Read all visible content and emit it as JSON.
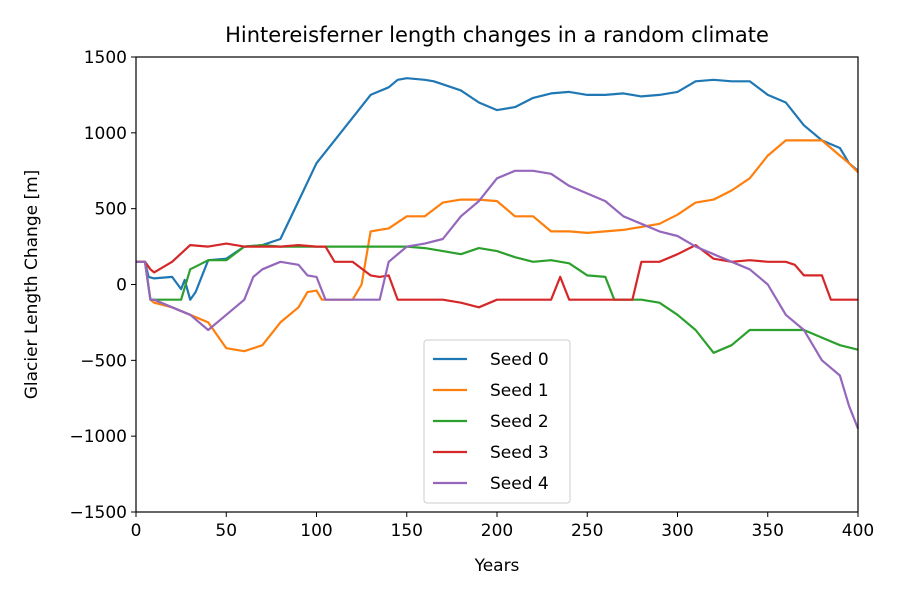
{
  "chart_data": {
    "type": "line",
    "title": "Hintereisferner length changes in a random climate",
    "xlabel": "Years",
    "ylabel": "Glacier Length Change [m]",
    "xlim": [
      0,
      400
    ],
    "ylim": [
      -1500,
      1500
    ],
    "xticks": [
      "0",
      "50",
      "100",
      "150",
      "200",
      "250",
      "300",
      "350",
      "400"
    ],
    "yticks": [
      "1500",
      "1000",
      "500",
      "0",
      "−500",
      "−1000",
      "−1500"
    ],
    "grid": false,
    "legend_position": "lower-center",
    "series": [
      {
        "name": "Seed 0",
        "color": "#1f77b4",
        "x": [
          0,
          5,
          7,
          10,
          20,
          25,
          27,
          30,
          33,
          40,
          50,
          60,
          70,
          80,
          90,
          100,
          110,
          120,
          130,
          140,
          145,
          150,
          160,
          165,
          170,
          180,
          190,
          200,
          210,
          220,
          230,
          240,
          250,
          260,
          270,
          280,
          290,
          300,
          310,
          320,
          330,
          340,
          350,
          360,
          370,
          375,
          380,
          390,
          395,
          400
        ],
        "y": [
          150,
          150,
          50,
          40,
          50,
          -30,
          30,
          -100,
          -50,
          160,
          170,
          250,
          260,
          300,
          550,
          800,
          950,
          1100,
          1250,
          1300,
          1350,
          1360,
          1350,
          1340,
          1320,
          1280,
          1200,
          1150,
          1170,
          1230,
          1260,
          1270,
          1250,
          1250,
          1260,
          1240,
          1250,
          1270,
          1340,
          1350,
          1340,
          1340,
          1250,
          1200,
          1050,
          1000,
          950,
          900,
          800,
          750
        ]
      },
      {
        "name": "Seed 1",
        "color": "#ff7f0e",
        "x": [
          0,
          5,
          8,
          10,
          20,
          30,
          40,
          50,
          60,
          70,
          80,
          90,
          95,
          100,
          103,
          110,
          120,
          125,
          130,
          140,
          150,
          160,
          170,
          180,
          190,
          200,
          210,
          220,
          230,
          240,
          250,
          260,
          270,
          280,
          290,
          300,
          310,
          320,
          330,
          340,
          350,
          360,
          370,
          380,
          390,
          395,
          400
        ],
        "y": [
          150,
          150,
          -100,
          -120,
          -150,
          -200,
          -250,
          -420,
          -440,
          -400,
          -250,
          -150,
          -50,
          -40,
          -100,
          -100,
          -100,
          0,
          350,
          370,
          450,
          450,
          540,
          560,
          560,
          550,
          450,
          450,
          350,
          350,
          340,
          350,
          360,
          380,
          400,
          460,
          540,
          560,
          620,
          700,
          850,
          950,
          950,
          950,
          850,
          800,
          740
        ]
      },
      {
        "name": "Seed 2",
        "color": "#2ca02c",
        "x": [
          0,
          5,
          8,
          10,
          20,
          25,
          30,
          35,
          40,
          50,
          60,
          70,
          80,
          90,
          100,
          110,
          120,
          130,
          140,
          150,
          160,
          170,
          180,
          190,
          200,
          210,
          220,
          230,
          240,
          250,
          260,
          265,
          270,
          280,
          290,
          300,
          310,
          320,
          330,
          340,
          350,
          360,
          370,
          380,
          390,
          400
        ],
        "y": [
          150,
          150,
          -100,
          -100,
          -100,
          -100,
          100,
          130,
          160,
          160,
          250,
          260,
          250,
          250,
          250,
          250,
          250,
          250,
          250,
          250,
          240,
          220,
          200,
          240,
          220,
          180,
          150,
          160,
          140,
          60,
          50,
          -100,
          -100,
          -100,
          -120,
          -200,
          -300,
          -450,
          -400,
          -300,
          -300,
          -300,
          -300,
          -350,
          -400,
          -430
        ]
      },
      {
        "name": "Seed 3",
        "color": "#d62728",
        "x": [
          0,
          5,
          8,
          10,
          20,
          30,
          40,
          50,
          60,
          70,
          80,
          90,
          100,
          105,
          110,
          120,
          130,
          135,
          140,
          145,
          150,
          160,
          170,
          180,
          190,
          200,
          210,
          220,
          230,
          235,
          240,
          245,
          250,
          260,
          270,
          275,
          280,
          290,
          300,
          310,
          320,
          330,
          340,
          350,
          360,
          365,
          370,
          380,
          385,
          390,
          400
        ],
        "y": [
          150,
          150,
          100,
          80,
          150,
          260,
          250,
          270,
          250,
          250,
          250,
          260,
          250,
          250,
          150,
          150,
          60,
          50,
          60,
          -100,
          -100,
          -100,
          -100,
          -120,
          -150,
          -100,
          -100,
          -100,
          -100,
          50,
          -100,
          -100,
          -100,
          -100,
          -100,
          -100,
          150,
          150,
          200,
          260,
          170,
          150,
          160,
          150,
          150,
          130,
          60,
          60,
          -100,
          -100,
          -100
        ]
      },
      {
        "name": "Seed 4",
        "color": "#9467bd",
        "x": [
          0,
          5,
          8,
          10,
          20,
          30,
          40,
          50,
          60,
          65,
          70,
          80,
          90,
          95,
          100,
          105,
          110,
          120,
          130,
          135,
          140,
          150,
          160,
          170,
          180,
          190,
          200,
          210,
          220,
          230,
          240,
          250,
          260,
          270,
          280,
          290,
          300,
          310,
          320,
          330,
          340,
          350,
          360,
          370,
          380,
          390,
          395,
          400
        ],
        "y": [
          150,
          150,
          -100,
          -100,
          -150,
          -200,
          -300,
          -200,
          -100,
          50,
          100,
          150,
          130,
          60,
          50,
          -100,
          -100,
          -100,
          -100,
          -100,
          150,
          250,
          270,
          300,
          450,
          550,
          700,
          750,
          750,
          730,
          650,
          600,
          550,
          450,
          400,
          350,
          320,
          250,
          200,
          150,
          100,
          0,
          -200,
          -300,
          -500,
          -600,
          -800,
          -950
        ]
      }
    ]
  }
}
